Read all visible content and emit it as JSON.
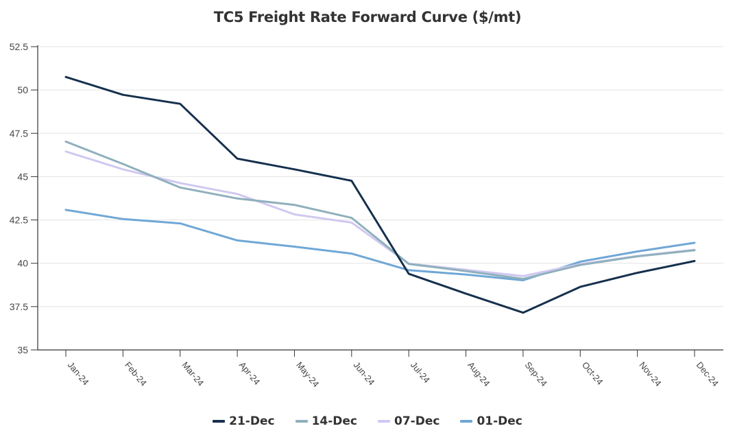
{
  "chart_data": {
    "type": "line",
    "title": "TC5 Freight Rate Forward Curve ($/mt)",
    "xlabel": "",
    "ylabel": "",
    "categories": [
      "Jan-24",
      "Feb-24",
      "Mar-24",
      "Apr-24",
      "May-24",
      "Jun-24",
      "Jul-24",
      "Aug-24",
      "Sep-24",
      "Oct-24",
      "Nov-24",
      "Dec-24"
    ],
    "ylim": [
      35,
      52.5
    ],
    "yticks": [
      35,
      37.5,
      40,
      42.5,
      45,
      47.5,
      50,
      52.5
    ],
    "ytick_labels": [
      "35",
      "37.5",
      "40",
      "42.5",
      "45",
      "47.5",
      "50",
      "52.5"
    ],
    "grid": true,
    "legend_position": "bottom",
    "series": [
      {
        "name": "21-Dec",
        "color": "#16304d",
        "values": [
          50.75,
          49.72,
          49.2,
          46.04,
          45.42,
          44.76,
          39.39,
          38.25,
          37.15,
          38.64,
          39.45,
          40.13
        ]
      },
      {
        "name": "14-Dec",
        "color": "#8fb0bc",
        "values": [
          47.02,
          45.73,
          44.37,
          43.74,
          43.37,
          42.62,
          39.96,
          39.55,
          39.1,
          39.9,
          40.4,
          40.75
        ]
      },
      {
        "name": "07-Dec",
        "color": "#d0c8f0",
        "values": [
          46.45,
          45.42,
          44.63,
          44.0,
          42.82,
          42.35,
          39.98,
          39.62,
          39.26,
          39.95,
          40.42,
          40.78
        ]
      },
      {
        "name": "01-Dec",
        "color": "#6fa7d6",
        "values": [
          43.08,
          42.55,
          42.3,
          41.32,
          40.96,
          40.56,
          39.6,
          39.35,
          39.02,
          40.09,
          40.68,
          41.18
        ]
      }
    ]
  }
}
